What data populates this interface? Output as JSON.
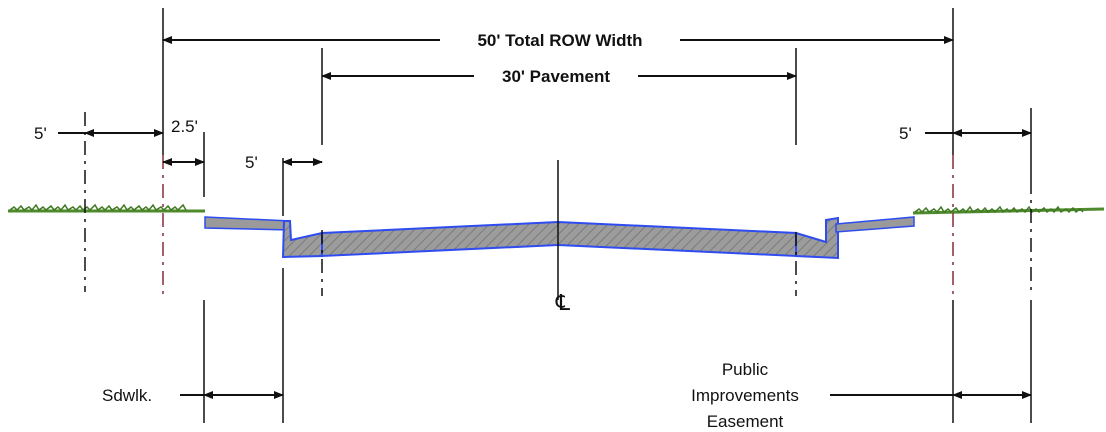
{
  "dimensions": {
    "total_row": "50' Total ROW Width",
    "pavement": "30' Pavement",
    "left_5": "5'",
    "left_2_5": "2.5'",
    "gutter_5": "5'",
    "right_5": "5'"
  },
  "labels": {
    "centerline": "℄",
    "sidewalk": "Sdwlk.",
    "pie_line1": "Public",
    "pie_line2": "Improvements",
    "pie_line3": "Easement"
  },
  "colors": {
    "line": "#111111",
    "pavement_edge": "#2e4cf0",
    "pavement_fill": "#9a9a9a",
    "grass": "#4f8a2c",
    "easement_dash": "#8a2a3a"
  }
}
